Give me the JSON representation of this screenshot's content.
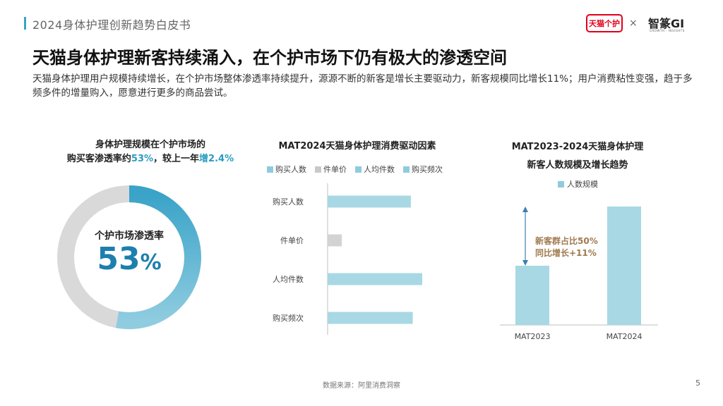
{
  "header": {
    "title": "2024身体护理创新趋势白皮书"
  },
  "logos": {
    "tmall": "天猫个护",
    "separator": "×",
    "partner": "智篆GI",
    "partner_sub": "GROWTH · INSIGHTS"
  },
  "main": {
    "title": "天猫身体护理新客持续涌入，在个护市场下仍有极大的渗透空间",
    "subtitle": "天猫身体护理用户规模持续增长，在个护市场整体渗透率持续提升，源源不断的新客是增长主要驱动力，新客规模同比增长11%；用户消费粘性变强，趋于多频多件的增量购入，愿意进行更多的商品尝试。"
  },
  "left_panel": {
    "caption_line1": "身体护理规模在个护市场的",
    "caption_line2_prefix": "购买客渗透率约",
    "caption_highlight1": "53%",
    "caption_mid": "，较上一年",
    "caption_highlight2": "增2.4%",
    "donut_label": "个护市场渗透率",
    "donut_value": "53",
    "donut_unit": "%",
    "donut_fraction": 0.53,
    "colors": {
      "filled": "#3aa3c8",
      "remaining": "#d9d9d9"
    }
  },
  "chart_data": [
    {
      "type": "bar",
      "title": "MAT2024天猫身体护理消费驱动因素",
      "orientation": "horizontal",
      "legend": [
        "购买人数",
        "件单价",
        "人均件数",
        "购买频次"
      ],
      "categories": [
        "购买人数",
        "件单价",
        "人均件数",
        "购买频次"
      ],
      "values": [
        0.88,
        0.15,
        1.0,
        0.9
      ],
      "colors": [
        "#a8d8e4",
        "#d3d3d3",
        "#a8d8e4",
        "#a8d8e4"
      ],
      "legend_colors": [
        "#8fcbdc",
        "#c8c8c8",
        "#8fcbdc",
        "#8fcbdc"
      ]
    },
    {
      "type": "bar",
      "title": "MAT2023-2024天猫身体护理新客人数规模及增长趋势",
      "title_line1": "MAT2023-2024天猫身体护理",
      "title_line2": "新客人数规模及增长趋势",
      "legend": [
        "人数规模"
      ],
      "categories": [
        "MAT2023",
        "MAT2024"
      ],
      "values": [
        0.5,
        1.0
      ],
      "color": "#a8d8e4",
      "annotation_line1": "新客群占比50%",
      "annotation_line2": "同比增长+11%",
      "annotation_color": "#a07a4e"
    }
  ],
  "footer": {
    "source": "数据来源：阿里消费洞察",
    "page": "5"
  }
}
